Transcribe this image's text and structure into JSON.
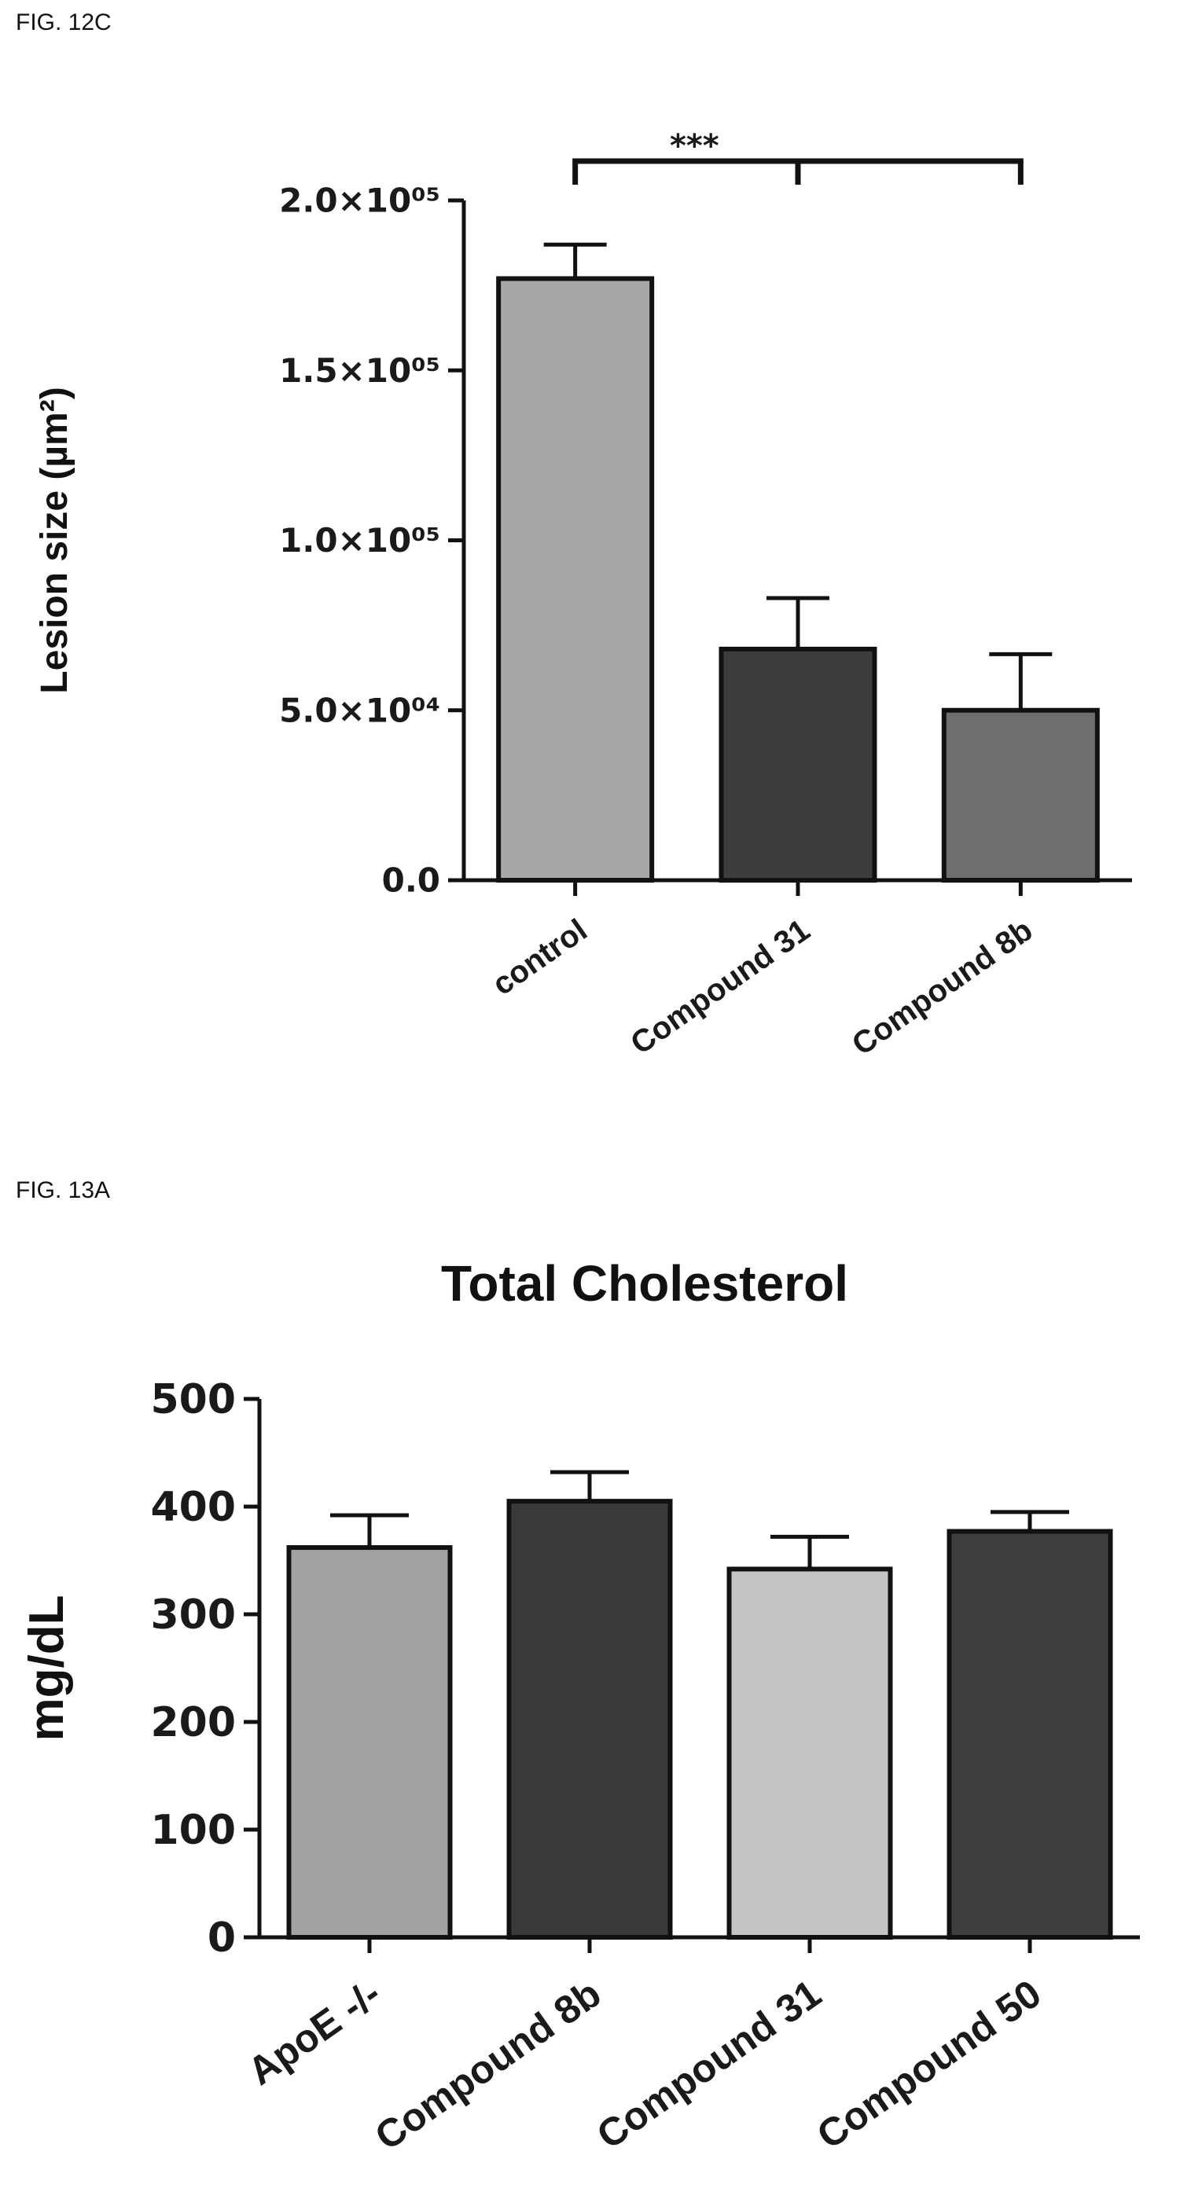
{
  "figures": [
    {
      "label": "FIG. 12C"
    },
    {
      "label": "FIG. 13A"
    }
  ],
  "chart_data": [
    {
      "type": "bar",
      "title": "",
      "categories": [
        "control",
        "Compound 31",
        "Compound 8b"
      ],
      "values": [
        177000,
        68000,
        50000
      ],
      "errors": [
        10000,
        15000,
        16500
      ],
      "ylabel": "Lesion size (µm²)",
      "ylim": [
        0,
        200000
      ],
      "yticks": [
        0,
        50000,
        100000,
        150000,
        200000
      ],
      "ytick_labels": [
        "0.0",
        "5.0×10⁰⁴",
        "1.0×10⁰⁵",
        "1.5×10⁰⁵",
        "2.0×10⁰⁵"
      ],
      "bar_colors": [
        "#a7a7a7",
        "#3d3d3d",
        "#6e6e6e"
      ],
      "significance": "***",
      "grid": false
    },
    {
      "type": "bar",
      "title": "Total Cholesterol",
      "categories": [
        "ApoE -/-",
        "Compound 8b",
        "Compound 31",
        "Compound 50"
      ],
      "values": [
        362,
        405,
        342,
        377
      ],
      "errors": [
        30,
        27,
        30,
        18
      ],
      "ylabel": "mg/dL",
      "ylim": [
        0,
        500
      ],
      "yticks": [
        0,
        100,
        200,
        300,
        400,
        500
      ],
      "ytick_labels": [
        "0",
        "100",
        "200",
        "300",
        "400",
        "500"
      ],
      "bar_colors": [
        "#a2a2a2",
        "#3a3a3a",
        "#c4c4c4",
        "#3e3e3e"
      ],
      "grid": false
    }
  ]
}
